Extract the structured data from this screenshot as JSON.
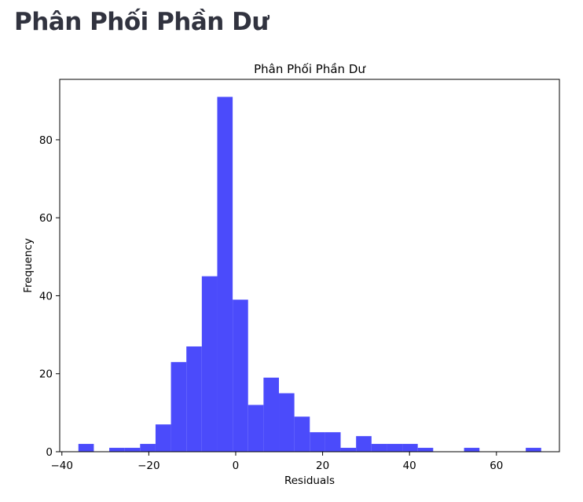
{
  "page": {
    "title": "Phân Phối Phần Dư"
  },
  "chart_data": {
    "type": "histogram",
    "title": "Phân Phối Phần Dư",
    "xlabel": "Residuals",
    "ylabel": "Frequency",
    "xlim": [
      -40.5,
      74.5
    ],
    "ylim": [
      0,
      95.5
    ],
    "bar_color": "#4b4bfb",
    "xticks": [
      -40,
      -20,
      0,
      20,
      40,
      60
    ],
    "xtick_labels": [
      "−40",
      "−20",
      "0",
      "20",
      "40",
      "60"
    ],
    "yticks": [
      0,
      20,
      40,
      60,
      80
    ],
    "ytick_labels": [
      "0",
      "20",
      "40",
      "60",
      "80"
    ],
    "bin_start": -36.2,
    "bin_width": 3.55,
    "counts": [
      2,
      0,
      1,
      1,
      2,
      7,
      23,
      27,
      45,
      91,
      39,
      12,
      19,
      15,
      9,
      5,
      5,
      1,
      4,
      2,
      2,
      2,
      1,
      0,
      0,
      1,
      0,
      0,
      0,
      1
    ]
  }
}
